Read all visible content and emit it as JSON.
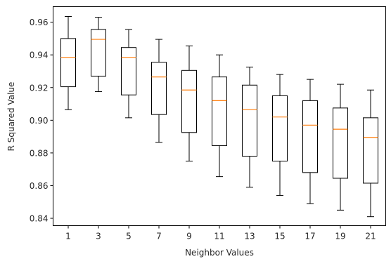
{
  "chart_data": {
    "type": "boxplot",
    "title": "",
    "xlabel": "Neighbor Values",
    "ylabel": "R Squared Value",
    "ylim": [
      0.8355,
      0.9695
    ],
    "yticks": [
      "0.84",
      "0.86",
      "0.88",
      "0.90",
      "0.92",
      "0.94",
      "0.96"
    ],
    "yticks_values": [
      0.84,
      0.86,
      0.88,
      0.9,
      0.92,
      0.94,
      0.96
    ],
    "grid": false,
    "categories": [
      "1",
      "3",
      "5",
      "7",
      "9",
      "11",
      "13",
      "15",
      "17",
      "19",
      "21"
    ],
    "boxes": [
      {
        "whisker_low": 0.9065,
        "q1": 0.9205,
        "median": 0.9385,
        "q3": 0.95,
        "whisker_high": 0.9635
      },
      {
        "whisker_low": 0.9175,
        "q1": 0.927,
        "median": 0.9495,
        "q3": 0.9555,
        "whisker_high": 0.963
      },
      {
        "whisker_low": 0.9015,
        "q1": 0.9155,
        "median": 0.9385,
        "q3": 0.9445,
        "whisker_high": 0.9555
      },
      {
        "whisker_low": 0.8865,
        "q1": 0.9035,
        "median": 0.9265,
        "q3": 0.9355,
        "whisker_high": 0.9495
      },
      {
        "whisker_low": 0.875,
        "q1": 0.8925,
        "median": 0.9185,
        "q3": 0.9305,
        "whisker_high": 0.9455
      },
      {
        "whisker_low": 0.8655,
        "q1": 0.8845,
        "median": 0.912,
        "q3": 0.9265,
        "whisker_high": 0.94
      },
      {
        "whisker_low": 0.859,
        "q1": 0.878,
        "median": 0.9065,
        "q3": 0.9215,
        "whisker_high": 0.9325
      },
      {
        "whisker_low": 0.854,
        "q1": 0.875,
        "median": 0.902,
        "q3": 0.915,
        "whisker_high": 0.928
      },
      {
        "whisker_low": 0.849,
        "q1": 0.868,
        "median": 0.897,
        "q3": 0.912,
        "whisker_high": 0.925
      },
      {
        "whisker_low": 0.845,
        "q1": 0.8645,
        "median": 0.8945,
        "q3": 0.9075,
        "whisker_high": 0.922
      },
      {
        "whisker_low": 0.841,
        "q1": 0.8615,
        "median": 0.8895,
        "q3": 0.9015,
        "whisker_high": 0.9185
      }
    ],
    "colors": {
      "box": "#000000",
      "median": "#ff7f0e",
      "axis": "#000000",
      "text": "#262626"
    }
  }
}
